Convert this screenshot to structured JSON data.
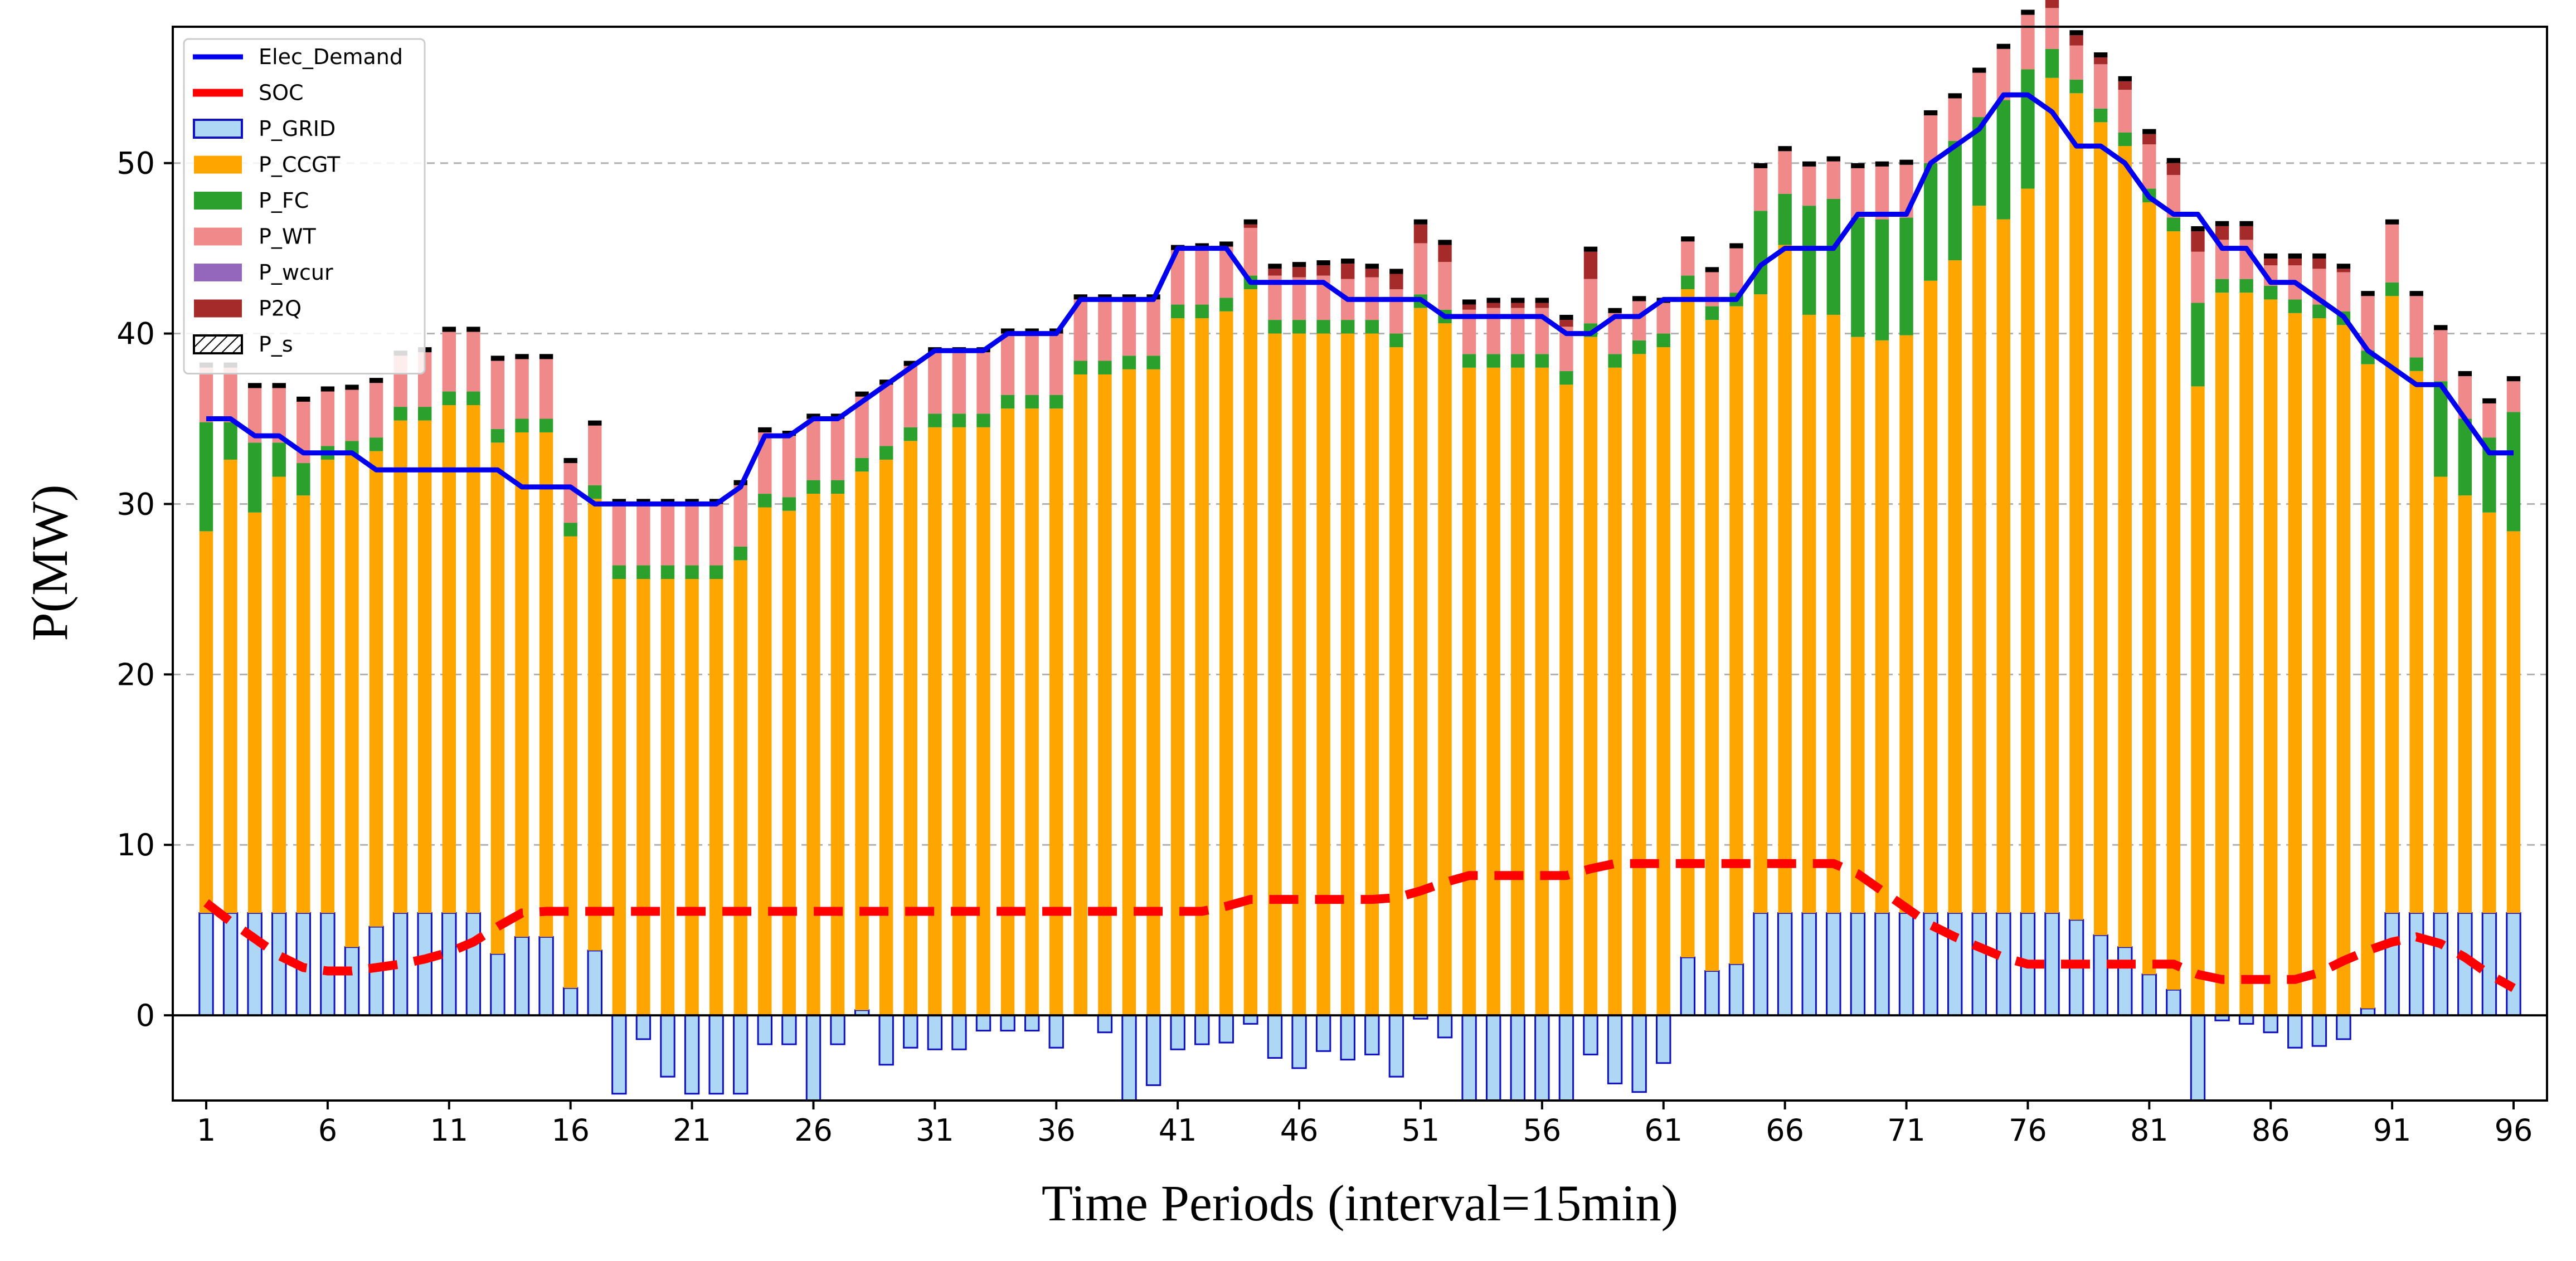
{
  "chart_data": {
    "type": "bar",
    "xlabel": "Time Periods (interval=15min)",
    "ylabel": "P(MW)",
    "x": [
      1,
      2,
      3,
      4,
      5,
      6,
      7,
      8,
      9,
      10,
      11,
      12,
      13,
      14,
      15,
      16,
      17,
      18,
      19,
      20,
      21,
      22,
      23,
      24,
      25,
      26,
      27,
      28,
      29,
      30,
      31,
      32,
      33,
      34,
      35,
      36,
      37,
      38,
      39,
      40,
      41,
      42,
      43,
      44,
      45,
      46,
      47,
      48,
      49,
      50,
      51,
      52,
      53,
      54,
      55,
      56,
      57,
      58,
      59,
      60,
      61,
      62,
      63,
      64,
      65,
      66,
      67,
      68,
      69,
      70,
      71,
      72,
      73,
      74,
      75,
      76,
      77,
      78,
      79,
      80,
      81,
      82,
      83,
      84,
      85,
      86,
      87,
      88,
      89,
      90,
      91,
      92,
      93,
      94,
      95,
      96
    ],
    "xticks": [
      1,
      6,
      11,
      16,
      21,
      26,
      31,
      36,
      41,
      46,
      51,
      56,
      61,
      66,
      71,
      76,
      81,
      86,
      91,
      96
    ],
    "yticks": [
      0,
      10,
      20,
      30,
      40,
      50
    ],
    "ylim": [
      -5,
      58
    ],
    "grid": "horizontal dashed",
    "legend_position": "upper-left",
    "legend": [
      "Elec_Demand",
      "SOC",
      "P_GRID",
      "P_CCGT",
      "P_FC",
      "P_WT",
      "P_wcur",
      "P2Q",
      "P_s"
    ],
    "colors": {
      "Elec_Demand": "#0000ee",
      "SOC": "#ff0000",
      "P_GRID": "#aed6f5",
      "P_GRID_edge": "#1010c0",
      "P_CCGT": "#ffa500",
      "P_FC": "#2ca02c",
      "P_WT": "#f08a8a",
      "P_wcur": "#9467bd",
      "P2Q": "#a52a2a",
      "P_s": "#000000"
    },
    "series": [
      {
        "name": "Elec_Demand",
        "kind": "line",
        "values": [
          35,
          35,
          34,
          34,
          33,
          33,
          33,
          32,
          32,
          32,
          32,
          32,
          32,
          31,
          31,
          31,
          30,
          30,
          30,
          30,
          30,
          30,
          31,
          34,
          34,
          35,
          35,
          36,
          37,
          38,
          39,
          39,
          39,
          40,
          40,
          40,
          42,
          42,
          42,
          42,
          45,
          45,
          45,
          43,
          43,
          43,
          43,
          42,
          42,
          42,
          42,
          41,
          41,
          41,
          41,
          41,
          40,
          40,
          41,
          41,
          42,
          42,
          42,
          42,
          44,
          45,
          45,
          45,
          47,
          47,
          47,
          50,
          51,
          52,
          54,
          54,
          53,
          51,
          51,
          50,
          48,
          47,
          47,
          45,
          45,
          43,
          43,
          42,
          41,
          39,
          38,
          37,
          37,
          35,
          33,
          33
        ]
      },
      {
        "name": "SOC",
        "kind": "line",
        "values": [
          6.6,
          5.5,
          4.5,
          3.5,
          2.8,
          2.6,
          2.6,
          2.8,
          3.0,
          3.3,
          3.7,
          4.3,
          5.2,
          6.0,
          6.1,
          6.1,
          6.1,
          6.1,
          6.1,
          6.1,
          6.1,
          6.1,
          6.1,
          6.1,
          6.1,
          6.1,
          6.1,
          6.1,
          6.1,
          6.1,
          6.1,
          6.1,
          6.1,
          6.1,
          6.1,
          6.1,
          6.1,
          6.1,
          6.1,
          6.1,
          6.1,
          6.1,
          6.4,
          6.8,
          6.8,
          6.8,
          6.8,
          6.8,
          6.8,
          6.9,
          7.3,
          7.8,
          8.2,
          8.2,
          8.2,
          8.2,
          8.2,
          8.6,
          8.9,
          8.9,
          8.9,
          8.9,
          8.9,
          8.9,
          8.9,
          8.9,
          8.9,
          8.9,
          8.3,
          7.3,
          6.3,
          5.3,
          4.6,
          4.0,
          3.4,
          3.0,
          3.0,
          3.0,
          3.0,
          3.0,
          3.0,
          3.0,
          2.4,
          2.1,
          2.1,
          2.1,
          2.1,
          2.5,
          3.2,
          3.8,
          4.3,
          4.6,
          4.2,
          3.4,
          2.4,
          1.6
        ]
      },
      {
        "name": "P_GRID",
        "kind": "bar",
        "values": [
          6,
          6,
          6,
          6,
          6,
          6,
          4,
          5.2,
          6,
          6,
          6,
          6,
          3.6,
          4.6,
          4.6,
          1.6,
          3.8,
          -4.6,
          -1.4,
          -3.6,
          -4.6,
          -4.6,
          -4.6,
          -1.7,
          -1.7,
          -5,
          -1.7,
          0.3,
          -2.9,
          -1.9,
          -2.0,
          -2.0,
          -0.9,
          -0.9,
          -0.9,
          -1.9,
          0,
          -1.0,
          -5,
          -4.1,
          -2.0,
          -1.7,
          -1.6,
          -0.5,
          -2.5,
          -3.1,
          -2.1,
          -2.6,
          -2.3,
          -3.6,
          -0.2,
          -1.3,
          -5,
          -5,
          -5,
          -5,
          -5,
          -2.3,
          -4.0,
          -4.5,
          -2.8,
          3.4,
          2.6,
          3.0,
          6,
          6,
          6,
          6,
          6,
          6,
          6,
          6,
          6,
          6,
          6,
          6,
          6,
          5.6,
          4.7,
          4.0,
          2.4,
          1.5,
          -5,
          -0.3,
          -0.5,
          -1.0,
          -1.9,
          -1.8,
          -1.4,
          0.4,
          6,
          6,
          6,
          6,
          6,
          6
        ]
      },
      {
        "name": "P_CCGT",
        "kind": "bar",
        "values": [
          22.4,
          26.6,
          23.5,
          25.6,
          24.5,
          26.6,
          28.9,
          27.9,
          28.9,
          28.9,
          29.8,
          29.8,
          30,
          29.6,
          29.6,
          26.5,
          26.5,
          25.6,
          25.6,
          25.6,
          25.6,
          25.6,
          26.7,
          29.8,
          29.6,
          30.6,
          30.6,
          31.6,
          32.6,
          33.7,
          34.5,
          34.5,
          34.5,
          35.6,
          35.6,
          35.6,
          37.6,
          37.6,
          37.9,
          37.9,
          40.9,
          40.9,
          41.3,
          42.6,
          40,
          40,
          40,
          40,
          40,
          39.2,
          41.5,
          40.6,
          38,
          38,
          38,
          38,
          37,
          39.8,
          38,
          38.8,
          39.2,
          39.2,
          38.2,
          38.6,
          36.3,
          39.2,
          35.1,
          35.1,
          33.8,
          33.6,
          33.9,
          37.1,
          38.3,
          41.5,
          40.7,
          42.5,
          49,
          48.5,
          47.7,
          47,
          45.3,
          44.5,
          36.9,
          42.4,
          42.4,
          42,
          41.2,
          40.9,
          40.5,
          37.8,
          36.2,
          31.8,
          25.6,
          24.5,
          23.5,
          22.4
        ]
      },
      {
        "name": "P_FC",
        "kind": "bar",
        "values": [
          6.4,
          2.2,
          4.1,
          2.0,
          1.9,
          0.8,
          0.8,
          0.8,
          0.8,
          0.8,
          0.8,
          0.8,
          0.8,
          0.8,
          0.8,
          0.8,
          0.8,
          0.8,
          0.8,
          0.8,
          0.8,
          0.8,
          0.8,
          0.8,
          0.8,
          0.8,
          0.8,
          0.8,
          0.8,
          0.8,
          0.8,
          0.8,
          0.8,
          0.8,
          0.8,
          0.8,
          0.8,
          0.8,
          0.8,
          0.8,
          0.8,
          0.8,
          0.8,
          0.8,
          0.8,
          0.8,
          0.8,
          0.8,
          0.8,
          0.8,
          0.8,
          0.8,
          0.8,
          0.8,
          0.8,
          0.8,
          0.8,
          0.8,
          0.8,
          0.8,
          0.8,
          0.8,
          0.8,
          0.8,
          4.9,
          3.0,
          6.4,
          6.8,
          7.0,
          7.1,
          6.9,
          6.9,
          7.0,
          5.2,
          7.0,
          7.0,
          1.7,
          0.8,
          0.8,
          0.8,
          0.8,
          0.8,
          4.9,
          0.8,
          0.8,
          0.8,
          0.8,
          0.8,
          0.8,
          0.8,
          0.8,
          0.8,
          5.6,
          4.5,
          4.4,
          7.0
        ]
      },
      {
        "name": "P_WT",
        "kind": "bar",
        "values": [
          3.2,
          3.2,
          3.2,
          3.2,
          3.6,
          3.2,
          3.0,
          3.2,
          3.0,
          3.2,
          3.5,
          3.5,
          4.0,
          3.5,
          3.5,
          3.5,
          3.5,
          3.6,
          3.6,
          3.6,
          3.6,
          3.6,
          3.6,
          3.6,
          3.6,
          3.6,
          3.6,
          3.6,
          3.6,
          3.6,
          3.6,
          3.6,
          3.6,
          3.6,
          3.6,
          3.6,
          3.6,
          3.6,
          3.3,
          3.3,
          3.2,
          3.3,
          3.0,
          2.8,
          2.6,
          2.5,
          2.6,
          2.4,
          2.5,
          2.6,
          3.0,
          2.8,
          2.6,
          2.7,
          2.7,
          2.7,
          2.6,
          2.6,
          2.4,
          2.3,
          1.8,
          2.0,
          2.0,
          2.6,
          2.5,
          2.5,
          2.3,
          2.2,
          2.9,
          3.1,
          3.1,
          2.8,
          2.5,
          2.6,
          3.0,
          3.2,
          2.4,
          2.0,
          2.6,
          2.5,
          2.6,
          2.5,
          3.0,
          2.3,
          2.3,
          1.2,
          2.0,
          2.1,
          2.3,
          3.2,
          3.4,
          3.6,
          3.0,
          2.5,
          2.0,
          1.8
        ]
      },
      {
        "name": "P_wcur",
        "kind": "bar",
        "values": [
          0,
          0,
          0,
          0,
          0,
          0,
          0,
          0,
          0,
          0,
          0,
          0,
          0,
          0,
          0,
          0,
          0,
          0,
          0,
          0,
          0,
          0,
          0,
          0,
          0,
          0,
          0,
          0,
          0,
          0,
          0,
          0,
          0,
          0,
          0,
          0,
          0,
          0,
          0,
          0,
          0,
          0,
          0,
          0,
          0,
          0,
          0,
          0,
          0,
          0,
          0,
          0,
          0,
          0,
          0,
          0,
          0,
          0,
          0,
          0,
          0,
          0,
          0,
          0,
          0,
          0,
          0,
          0,
          0,
          0,
          0,
          0,
          0,
          0,
          0,
          0,
          0,
          0,
          0,
          0,
          0,
          0,
          0,
          0,
          0,
          0,
          0,
          0,
          0,
          0,
          0,
          0,
          0,
          0,
          0,
          0
        ]
      },
      {
        "name": "P2Q",
        "kind": "bar",
        "values": [
          0,
          0,
          0,
          0,
          0,
          0,
          0,
          0,
          0,
          0,
          0,
          0,
          0,
          0,
          0,
          0,
          0,
          0,
          0,
          0,
          0,
          0,
          0,
          0,
          0,
          0,
          0,
          0,
          0,
          0,
          0,
          0,
          0,
          0,
          0,
          0,
          0,
          0,
          0,
          0,
          0,
          0,
          0,
          0.2,
          0.4,
          0.6,
          0.6,
          0.9,
          0.5,
          0.9,
          1.1,
          1.0,
          0.3,
          0.3,
          0.3,
          0.3,
          0.4,
          1.6,
          0,
          0,
          0,
          0,
          0,
          0,
          0,
          0,
          0,
          0,
          0,
          0,
          0,
          0,
          0,
          0,
          0,
          0,
          0.7,
          0.6,
          0.4,
          0.5,
          0.6,
          0.7,
          1.2,
          0.8,
          0.8,
          0.4,
          0.4,
          0.6,
          0.2,
          0,
          0,
          0,
          0,
          0,
          0,
          0
        ]
      },
      {
        "name": "P_s",
        "kind": "bar",
        "values": [
          0.2,
          0.2,
          0.2,
          0.2,
          0.2,
          0.2,
          0.2,
          0.2,
          0.2,
          0.2,
          0.2,
          0.2,
          0.2,
          0.2,
          0.2,
          0.2,
          0.2,
          0.2,
          0.2,
          0.2,
          0.2,
          0.2,
          0.2,
          0.2,
          0.2,
          0.2,
          0.2,
          0.2,
          0.2,
          0.2,
          0.2,
          0.2,
          0.2,
          0.2,
          0.2,
          0.2,
          0.2,
          0.2,
          0.2,
          0.2,
          0.2,
          0.2,
          0.2,
          0.2,
          0.2,
          0.2,
          0.2,
          0.2,
          0.2,
          0.2,
          0.2,
          0.2,
          0.2,
          0.2,
          0.2,
          0.2,
          0.2,
          0.2,
          0.2,
          0.2,
          0.2,
          0.2,
          0.2,
          0.2,
          0.2,
          0.2,
          0.2,
          0.2,
          0.2,
          0.2,
          0.2,
          0.2,
          0.2,
          0.2,
          0.2,
          0.2,
          0.2,
          0.2,
          0.2,
          0.2,
          0.2,
          0.2,
          0.2,
          0.2,
          0.2,
          0.2,
          0.2,
          0.2,
          0.2,
          0.2,
          0.2,
          0.2,
          0.2,
          0.2,
          0.2,
          0.2
        ]
      }
    ]
  }
}
